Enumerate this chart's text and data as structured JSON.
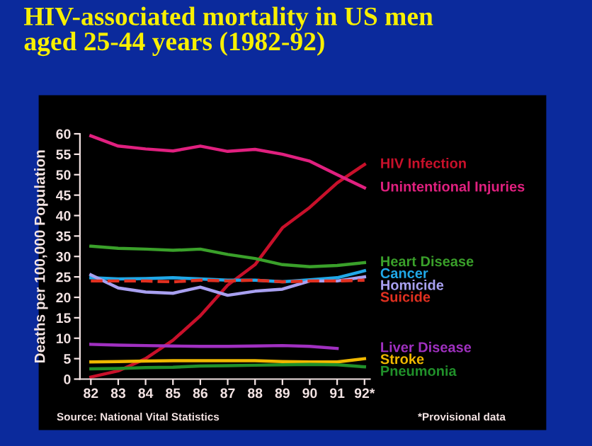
{
  "chart_data": {
    "type": "line",
    "title": "HIV-associated mortality in US men\naged 25-44 years (1982-92)",
    "ylabel": "Deaths per 100,000 Population",
    "categories": [
      "82",
      "83",
      "84",
      "85",
      "86",
      "87",
      "88",
      "89",
      "90",
      "91",
      "92*"
    ],
    "series": [
      {
        "name": "HIV Infection",
        "color": "#c8102a",
        "values": [
          0.5,
          2,
          5,
          9.5,
          15.5,
          23,
          28,
          37,
          42,
          48,
          52.5
        ]
      },
      {
        "name": "Unintentional Injuries",
        "color": "#e0207f",
        "values": [
          59.5,
          57,
          56.3,
          55.8,
          57,
          55.7,
          56.2,
          55,
          53.3,
          50,
          46.8
        ]
      },
      {
        "name": "Heart Disease",
        "color": "#3aa02a",
        "values": [
          32.5,
          32,
          31.8,
          31.5,
          31.8,
          30.5,
          29.5,
          28,
          27.5,
          27.8,
          28.5
        ]
      },
      {
        "name": "Cancer",
        "color": "#20a8e8",
        "values": [
          24.8,
          24.5,
          24.6,
          24.8,
          24.5,
          24.2,
          24.2,
          23.8,
          24.3,
          24.8,
          26.5
        ]
      },
      {
        "name": "Homicide",
        "color": "#a8a0f0",
        "values": [
          25.5,
          22.3,
          21.3,
          21,
          22.5,
          20.5,
          21.5,
          22,
          24,
          24,
          25
        ]
      },
      {
        "name": "Suicide",
        "color": "#e03020",
        "line_style": "dashed",
        "values": [
          24,
          24,
          24,
          23.8,
          24.2,
          24,
          24.2,
          23.8,
          24,
          24,
          24.2
        ]
      },
      {
        "name": "Liver Disease",
        "color": "#a030c0",
        "values": [
          8.5,
          8.3,
          8.2,
          8.1,
          8.0,
          8.0,
          8.1,
          8.2,
          8.0,
          7.5,
          null
        ]
      },
      {
        "name": "Stroke",
        "color": "#f0b800",
        "values": [
          4.2,
          4.3,
          4.4,
          4.5,
          4.5,
          4.5,
          4.5,
          4.3,
          4.2,
          4.2,
          5
        ]
      },
      {
        "name": "Pneumonia",
        "color": "#20902a",
        "values": [
          2.5,
          2.6,
          2.8,
          2.9,
          3.2,
          3.3,
          3.4,
          3.5,
          3.6,
          3.5,
          3
        ]
      }
    ],
    "ylim": [
      0,
      60
    ],
    "yticks": [
      0,
      5,
      10,
      15,
      20,
      25,
      30,
      35,
      40,
      45,
      50,
      55,
      60
    ],
    "grid": false,
    "annotations": [
      "Source: National Vital Statistics",
      "*Provisional data"
    ]
  }
}
